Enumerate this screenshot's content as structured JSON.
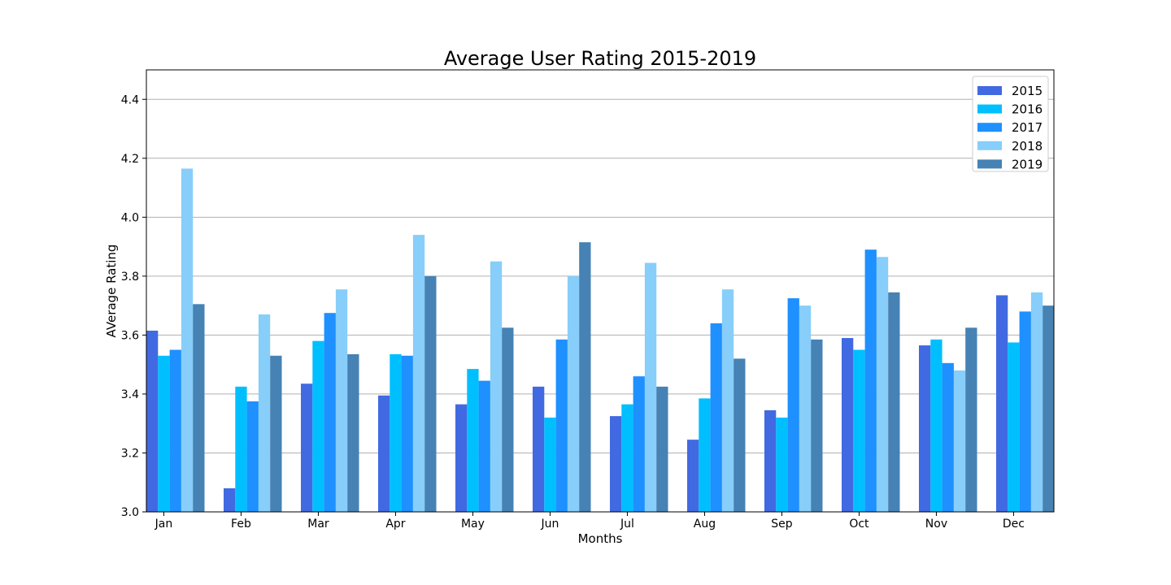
{
  "chart_data": {
    "type": "bar",
    "title": "Average User Rating 2015-2019",
    "xlabel": "Months",
    "ylabel": "AVerage Rating",
    "ylim": [
      3.0,
      4.5
    ],
    "yticks": [
      "3.0",
      "3.2",
      "3.4",
      "3.6",
      "3.8",
      "4.0",
      "4.2",
      "4.4"
    ],
    "grid": "horizontal",
    "legend_position": "top-right",
    "categories": [
      "Jan",
      "Feb",
      "Mar",
      "Apr",
      "May",
      "Jun",
      "Jul",
      "Aug",
      "Sep",
      "Oct",
      "Nov",
      "Dec"
    ],
    "series": [
      {
        "name": "2015",
        "color": "#4169e1",
        "values": [
          3.615,
          3.08,
          3.435,
          3.395,
          3.365,
          3.425,
          3.325,
          3.245,
          3.345,
          3.59,
          3.565,
          3.735
        ]
      },
      {
        "name": "2016",
        "color": "#00bfff",
        "values": [
          3.53,
          3.425,
          3.58,
          3.535,
          3.485,
          3.32,
          3.365,
          3.385,
          3.32,
          3.55,
          3.585,
          3.575
        ]
      },
      {
        "name": "2017",
        "color": "#1e90ff",
        "values": [
          3.55,
          3.375,
          3.675,
          3.53,
          3.445,
          3.585,
          3.46,
          3.64,
          3.725,
          3.89,
          3.505,
          3.68
        ]
      },
      {
        "name": "2018",
        "color": "#87cefa",
        "values": [
          4.165,
          3.67,
          3.755,
          3.94,
          3.85,
          3.8,
          3.845,
          3.755,
          3.7,
          3.865,
          3.48,
          3.745
        ]
      },
      {
        "name": "2019",
        "color": "#4682b4",
        "values": [
          3.705,
          3.53,
          3.535,
          3.8,
          3.625,
          3.915,
          3.425,
          3.52,
          3.585,
          3.745,
          3.625,
          3.7
        ]
      }
    ]
  }
}
